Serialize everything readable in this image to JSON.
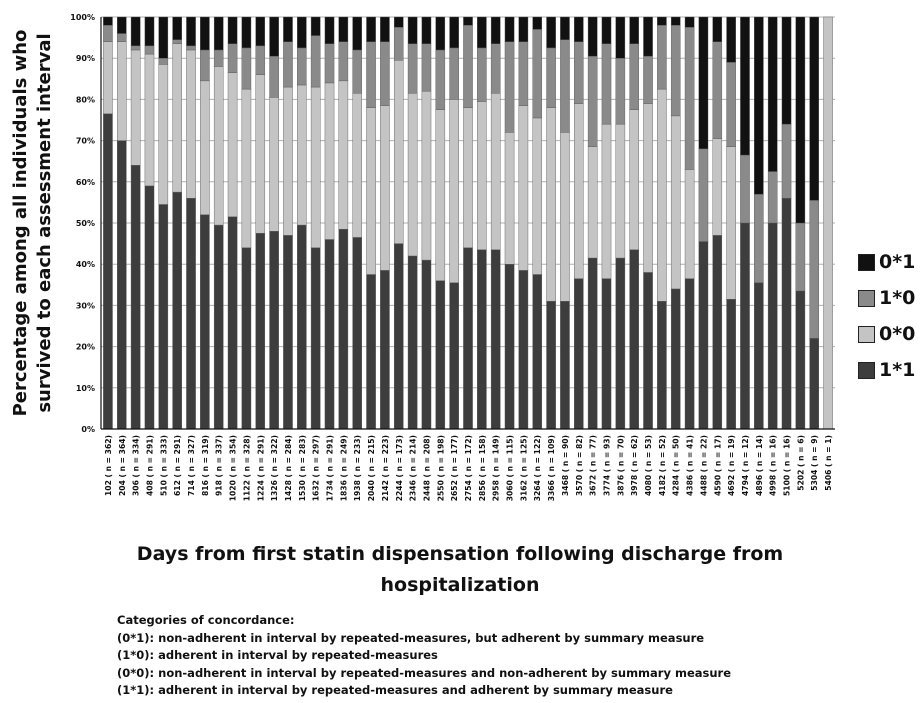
{
  "chart_data": {
    "type": "bar",
    "stacked": true,
    "percent_stacked": true,
    "ylabel": "Percentage among all individuals who survived to each assessment interval",
    "xlabel": "Days from first statin dispensation following discharge from hospitalization",
    "yticks": [
      "0%",
      "10%",
      "20%",
      "30%",
      "40%",
      "50%",
      "60%",
      "70%",
      "80%",
      "90%",
      "100%"
    ],
    "ylim": [
      0,
      100
    ],
    "grid": true,
    "legend_position": "right",
    "categories": [
      "102 ( n = 362)",
      "204 ( n = 364)",
      "306 ( n = 334)",
      "408 ( n = 291)",
      "510 ( n = 333)",
      "612 ( n = 291)",
      "714 ( n = 327)",
      "816 ( n = 319)",
      "918 ( n = 337)",
      "1020 ( n = 354)",
      "1122 ( n = 328)",
      "1224 ( n = 291)",
      "1326 ( n = 322)",
      "1428 ( n = 284)",
      "1530 ( n = 283)",
      "1632 ( n = 297)",
      "1734 ( n = 291)",
      "1836 ( n = 249)",
      "1938 ( n = 233)",
      "2040 ( n = 215)",
      "2142 ( n = 223)",
      "2244 ( n = 173)",
      "2346 ( n = 214)",
      "2448 ( n = 208)",
      "2550 ( n = 198)",
      "2652 ( n = 177)",
      "2754 ( n = 172)",
      "2856 ( n = 158)",
      "2958 ( n = 149)",
      "3060 ( n = 115)",
      "3162 ( n = 125)",
      "3264 ( n = 122)",
      "3366 ( n = 109)",
      "3468 ( n = 90)",
      "3570 ( n = 82)",
      "3672 ( n = 77)",
      "3774 ( n = 93)",
      "3876 ( n = 70)",
      "3978 ( n = 62)",
      "4080 ( n = 53)",
      "4182 ( n = 52)",
      "4284 ( n = 50)",
      "4386 ( n = 41)",
      "4488 ( n = 22)",
      "4590 ( n = 17)",
      "4692 ( n = 19)",
      "4794 ( n = 12)",
      "4896 ( n = 14)",
      "4998 ( n = 16)",
      "5100 ( n = 16)",
      "5202 ( n = 6)",
      "5304 ( n = 9)",
      "5406 ( n = 1)"
    ],
    "series": [
      {
        "name": "1*1",
        "color": "#3d3d3d",
        "values": [
          76.5,
          70,
          64,
          59,
          54.5,
          57.5,
          56,
          52,
          49.5,
          51.5,
          44,
          47.5,
          48,
          47,
          49.5,
          44,
          46,
          48.5,
          46.5,
          37.5,
          38.5,
          45,
          42,
          41,
          36,
          35.5,
          44,
          43.5,
          43.5,
          40,
          38.5,
          37.5,
          31,
          31,
          36.5,
          41.5,
          36.5,
          41.5,
          43.5,
          38,
          31,
          34,
          36.5,
          45.5,
          47,
          31.5,
          50,
          35.5,
          50,
          56,
          33.5,
          22,
          0
        ]
      },
      {
        "name": "0*0",
        "color": "#c4c4c4",
        "values": [
          17.5,
          24,
          28,
          32,
          34,
          36,
          36,
          32.5,
          38.5,
          35,
          38.5,
          38.5,
          32.5,
          36,
          34,
          39,
          38,
          36,
          35,
          40.5,
          40,
          44.5,
          39.5,
          41,
          41.5,
          44.5,
          34,
          36,
          38,
          32,
          40,
          38,
          47,
          41,
          42.5,
          27,
          37.5,
          32.5,
          34,
          41,
          51.5,
          42,
          26.5,
          0,
          23.5,
          37,
          0,
          0,
          0,
          0,
          0,
          0,
          100
        ]
      },
      {
        "name": "1*0",
        "color": "#8a8a8a",
        "values": [
          4,
          2,
          1,
          2,
          1.5,
          1,
          1,
          7.5,
          4,
          7,
          10,
          7,
          10,
          11,
          9,
          12.5,
          9.5,
          9.5,
          10.5,
          16,
          15.5,
          8,
          12,
          11.5,
          14.5,
          12.5,
          20,
          13,
          12,
          22,
          15.5,
          21.5,
          14.5,
          22.5,
          15,
          22,
          19.5,
          16,
          16,
          11.5,
          15.5,
          22,
          34.5,
          22.5,
          23.5,
          20.5,
          16.5,
          21.5,
          12.5,
          18,
          16.5,
          33.5,
          0
        ]
      },
      {
        "name": "0*1",
        "color": "#111111",
        "values": [
          2,
          4,
          7,
          7,
          10,
          5.5,
          7,
          8,
          8,
          6.5,
          7.5,
          7,
          9.5,
          6,
          7.5,
          4.5,
          6.5,
          6,
          8,
          6,
          6,
          2.5,
          6.5,
          6.5,
          8,
          7.5,
          2,
          7.5,
          6.5,
          6,
          6,
          3,
          7.5,
          5.5,
          6,
          9.5,
          6.5,
          10,
          6.5,
          9.5,
          2,
          2,
          2.5,
          32,
          6,
          11,
          33.5,
          43,
          37.5,
          26,
          50,
          44.5,
          0
        ]
      }
    ]
  },
  "legend": [
    {
      "label": "0*1",
      "color": "#111111"
    },
    {
      "label": "1*0",
      "color": "#8a8a8a"
    },
    {
      "label": "0*0",
      "color": "#c4c4c4"
    },
    {
      "label": "1*1",
      "color": "#3d3d3d"
    }
  ],
  "notes": {
    "title": "Categories of concordance:",
    "lines": [
      "(0*1): non-adherent in interval by repeated-measures, but adherent by summary measure",
      "(1*0): adherent in interval by repeated-measures",
      "(0*0): non-adherent in interval by repeated-measures and non-adherent by summary measure",
      "(1*1): adherent in interval by repeated-measures and adherent by summary measure"
    ]
  }
}
